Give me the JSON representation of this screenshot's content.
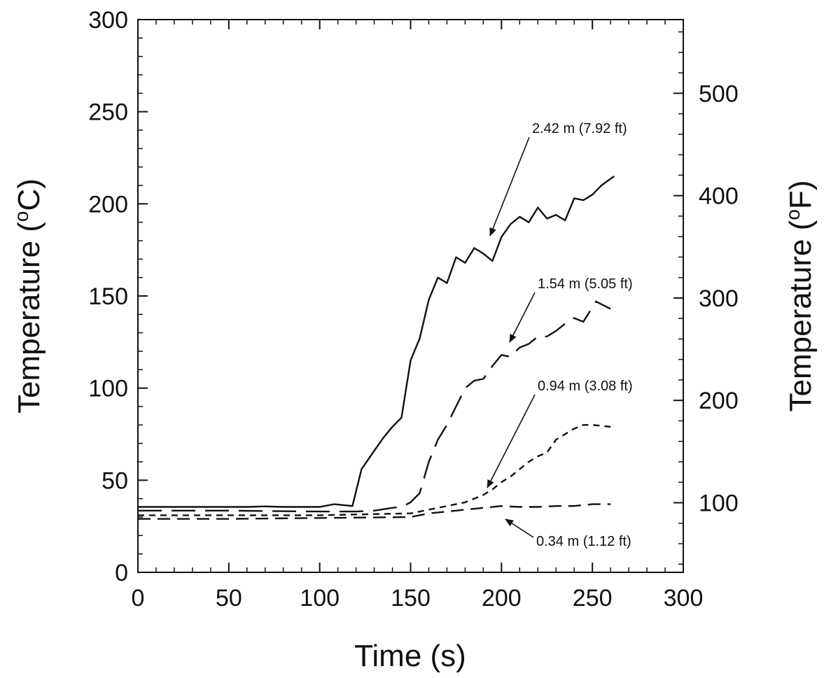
{
  "chart_data": {
    "type": "line",
    "title": "",
    "xlabel": "Time (s)",
    "ylabel": {
      "prefix": "Temperature (",
      "sup": "o",
      "suffix": "C)"
    },
    "y2label": {
      "prefix": "Temperature (",
      "sup": "o",
      "suffix": "F)"
    },
    "xlim": [
      0,
      300
    ],
    "ylim": [
      0,
      300
    ],
    "y2lim": [
      32,
      572
    ],
    "x_ticks": [
      "0",
      "50",
      "100",
      "150",
      "200",
      "250",
      "300"
    ],
    "y_ticks": [
      "0",
      "50",
      "100",
      "150",
      "200",
      "250",
      "300"
    ],
    "y2_ticks": [
      "100",
      "200",
      "300",
      "400",
      "500"
    ],
    "grid": false,
    "series": [
      {
        "name": "2.42 m (7.92 ft)",
        "style": "solid",
        "x": [
          0,
          20,
          40,
          60,
          70,
          80,
          100,
          108,
          118,
          123,
          130,
          135,
          140,
          145,
          150,
          155,
          160,
          165,
          170,
          175,
          180,
          185,
          190,
          195,
          200,
          205,
          210,
          215,
          220,
          225,
          230,
          235,
          240,
          245,
          250,
          255,
          262
        ],
        "y": [
          35.5,
          35.5,
          35.5,
          35.5,
          35.8,
          35.5,
          35.5,
          37,
          36,
          56,
          66,
          73,
          79,
          84,
          115,
          127,
          148,
          160,
          157,
          171,
          168,
          176,
          173,
          169,
          182,
          189,
          193,
          190,
          198,
          192,
          194,
          191,
          203,
          202,
          205,
          210,
          215
        ]
      },
      {
        "name": "1.54 m (5.05 ft)",
        "style": "long-dash",
        "x": [
          0,
          50,
          100,
          120,
          130,
          140,
          145,
          150,
          155,
          160,
          165,
          170,
          175,
          180,
          185,
          190,
          195,
          200,
          205,
          210,
          215,
          220,
          225,
          230,
          235,
          240,
          245,
          252,
          260
        ],
        "y": [
          33.5,
          33.5,
          33,
          33,
          33.5,
          35,
          35.5,
          38,
          43,
          60,
          72,
          80,
          90,
          100,
          104,
          105,
          112,
          118,
          117,
          122,
          124,
          128,
          128,
          131,
          135,
          138,
          136,
          147,
          143
        ]
      },
      {
        "name": "0.94 m (3.08 ft)",
        "style": "short-dash",
        "x": [
          0,
          50,
          100,
          150,
          160,
          170,
          180,
          190,
          195,
          200,
          205,
          210,
          215,
          220,
          225,
          230,
          235,
          240,
          245,
          250,
          260
        ],
        "y": [
          31,
          31,
          31,
          32,
          34,
          36,
          38,
          42,
          45,
          49,
          52,
          56,
          60,
          63,
          65,
          72,
          75,
          78,
          80,
          80,
          79
        ]
      },
      {
        "name": "0.34 m (1.12 ft)",
        "style": "medium-dash",
        "x": [
          0,
          50,
          100,
          150,
          160,
          170,
          180,
          190,
          200,
          210,
          220,
          230,
          240,
          250,
          260
        ],
        "y": [
          29,
          29,
          29.5,
          30,
          32,
          33,
          34,
          35,
          36,
          35.5,
          35.5,
          36,
          36,
          37,
          37
        ]
      }
    ],
    "annotations": [
      {
        "text": "2.42 m (7.92 ft)",
        "series": 0
      },
      {
        "text": "1.54 m (5.05 ft)",
        "series": 1
      },
      {
        "text": "0.94 m (3.08 ft)",
        "series": 2
      },
      {
        "text": "0.34 m (1.12 ft)",
        "series": 3
      }
    ]
  }
}
